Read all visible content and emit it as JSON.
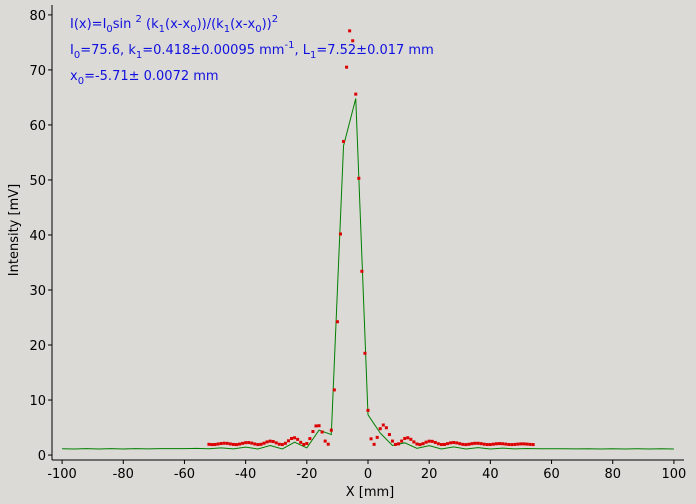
{
  "chart_data": {
    "type": "scatter",
    "xlabel": "X [mm]",
    "ylabel": "Intensity [mV]",
    "xlim": [
      -103.3,
      103.3
    ],
    "ylim": [
      -0.9,
      81.8
    ],
    "xticks": [
      -100,
      -80,
      -60,
      -40,
      -20,
      0,
      20,
      40,
      60,
      80,
      100
    ],
    "yticks": [
      0,
      10,
      20,
      30,
      40,
      50,
      60,
      70,
      80
    ],
    "annotations": [
      [
        {
          "text": "I(x)=I"
        },
        {
          "text": "0",
          "pos": "sub"
        },
        {
          "text": "sin "
        },
        {
          "text": "2",
          "pos": "sup"
        },
        {
          "text": " (k"
        },
        {
          "text": "1",
          "pos": "sub"
        },
        {
          "text": "(x-x"
        },
        {
          "text": "0",
          "pos": "sub"
        },
        {
          "text": "))/(k"
        },
        {
          "text": "1",
          "pos": "sub"
        },
        {
          "text": "(x-x"
        },
        {
          "text": "0",
          "pos": "sub"
        },
        {
          "text": "))"
        },
        {
          "text": "2",
          "pos": "sup"
        }
      ],
      [
        {
          "text": "I"
        },
        {
          "text": "0",
          "pos": "sub"
        },
        {
          "text": "=75.6,  k"
        },
        {
          "text": "1",
          "pos": "sub"
        },
        {
          "text": "=0.418±0.00095 mm"
        },
        {
          "text": "-1",
          "pos": "sup"
        },
        {
          "text": ",   L"
        },
        {
          "text": "1",
          "pos": "sub"
        },
        {
          "text": "=7.52±0.017 mm"
        }
      ],
      [
        {
          "text": "x"
        },
        {
          "text": "0",
          "pos": "sub"
        },
        {
          "text": "=-5.71±   0.0072 mm"
        }
      ]
    ],
    "series": [
      {
        "color": "#008000",
        "style": "line",
        "x": [
          -100,
          -96,
          -92,
          -88,
          -84,
          -80,
          -76,
          -72,
          -68,
          -64,
          -60,
          -56,
          -52,
          -48,
          -44,
          -40,
          -36,
          -32,
          -28,
          -24,
          -20,
          -16,
          -12,
          -8,
          -4,
          0,
          4,
          8,
          12,
          16,
          20,
          24,
          28,
          32,
          36,
          40,
          44,
          48,
          52,
          56,
          60,
          64,
          68,
          72,
          76,
          80,
          84,
          88,
          92,
          96,
          100
        ],
        "values": [
          1.15,
          1.1,
          1.16,
          1.1,
          1.17,
          1.11,
          1.17,
          1.13,
          1.17,
          1.16,
          1.16,
          1.22,
          1.15,
          1.31,
          1.13,
          1.45,
          1.1,
          1.73,
          1.11,
          2.34,
          1.3,
          4.53,
          3.72,
          56.2,
          64.8,
          7.32,
          3.99,
          1.74,
          2.22,
          1.21,
          1.72,
          1.11,
          1.48,
          1.1,
          1.34,
          1.11,
          1.25,
          1.13,
          1.19,
          1.14,
          1.15,
          1.15,
          1.13,
          1.15,
          1.11,
          1.15,
          1.1,
          1.15,
          1.1,
          1.14,
          1.1
        ]
      },
      {
        "color": "#dd0000",
        "style": "dots",
        "x": [
          -52,
          -51,
          -50,
          -49,
          -48,
          -47,
          -46,
          -45,
          -44,
          -43,
          -42,
          -41,
          -40,
          -39,
          -38,
          -37,
          -36,
          -35,
          -34,
          -33,
          -32,
          -31,
          -30,
          -29,
          -28,
          -27,
          -26,
          -25,
          -24,
          -23,
          -22,
          -21,
          -20,
          -19,
          -18,
          -17,
          -16,
          -15,
          -14,
          -13,
          -12,
          -11,
          -10,
          -9,
          -8,
          -7,
          -6,
          -5,
          -4,
          -3,
          -2,
          -1,
          0,
          1,
          2,
          3,
          4,
          5,
          6,
          7,
          8,
          9,
          10,
          11,
          12,
          13,
          14,
          15,
          16,
          17,
          18,
          19,
          20,
          21,
          22,
          23,
          24,
          25,
          26,
          27,
          28,
          29,
          30,
          31,
          32,
          33,
          34,
          35,
          36,
          37,
          38,
          39,
          40,
          41,
          42,
          43,
          44,
          45,
          46,
          47,
          48,
          49,
          50,
          51,
          52,
          53,
          54
        ],
        "values": [
          1.95,
          1.9,
          1.92,
          2.01,
          2.1,
          2.15,
          2.12,
          2.02,
          1.93,
          1.9,
          1.99,
          2.13,
          2.25,
          2.27,
          2.17,
          2.01,
          1.9,
          1.95,
          2.15,
          2.39,
          2.53,
          2.46,
          2.22,
          1.97,
          1.91,
          2.14,
          2.59,
          3.01,
          3.14,
          2.85,
          2.31,
          1.92,
          2.1,
          2.99,
          4.28,
          5.29,
          5.33,
          4.19,
          2.54,
          1.97,
          4.52,
          11.84,
          24.23,
          40.18,
          57.0,
          70.5,
          77.1,
          75.3,
          65.6,
          50.3,
          33.4,
          18.5,
          8.12,
          2.95,
          1.95,
          3.21,
          4.79,
          5.46,
          4.96,
          3.73,
          2.54,
          1.93,
          2.04,
          2.54,
          3.02,
          3.14,
          2.86,
          2.39,
          2.01,
          1.9,
          2.07,
          2.34,
          2.52,
          2.49,
          2.29,
          2.05,
          1.91,
          1.93,
          2.07,
          2.22,
          2.28,
          2.21,
          2.07,
          1.94,
          1.9,
          1.96,
          2.07,
          2.14,
          2.14,
          2.07,
          1.97,
          1.91,
          1.91,
          1.98,
          2.05,
          2.08,
          2.05,
          1.99,
          1.92,
          1.9,
          1.93,
          1.99,
          2.03,
          2.03,
          1.99,
          1.94,
          1.9
        ]
      }
    ]
  }
}
